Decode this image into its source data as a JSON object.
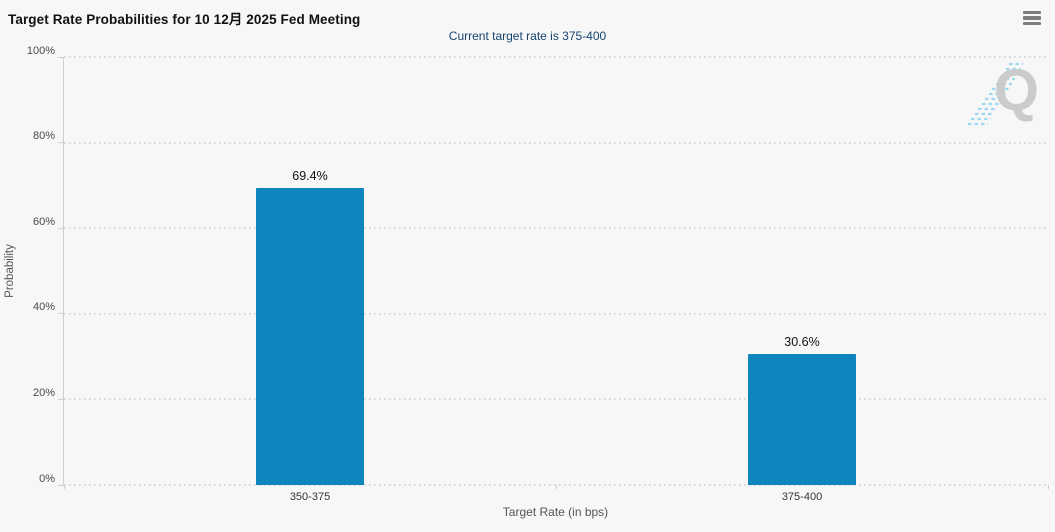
{
  "header": {
    "title": "Target Rate Probabilities for 10 12月 2025 Fed Meeting",
    "menu_icon": "hamburger-icon"
  },
  "subtitle": "Current target rate is 375-400",
  "watermark_letter": "Q",
  "chart_data": {
    "type": "bar",
    "title": "Target Rate Probabilities for 10 12月 2025 Fed Meeting",
    "subtitle": "Current target rate is 375-400",
    "categories": [
      "350-375",
      "375-400"
    ],
    "values": [
      69.4,
      30.6
    ],
    "data_labels": [
      "69.4%",
      "30.6%"
    ],
    "xlabel": "Target Rate (in bps)",
    "ylabel": "Probability",
    "ylim": [
      0,
      100
    ],
    "yticks": [
      0,
      20,
      40,
      60,
      80,
      100
    ],
    "ytick_labels": [
      "0%",
      "20%",
      "40%",
      "60%",
      "80%",
      "100%"
    ],
    "grid": "dotted horizontal",
    "legend": "none",
    "bar_color": "#0e85bd"
  },
  "colors": {
    "background": "#f7f7f7",
    "bar": "#0e85bd",
    "subtitle_text": "#17446f",
    "grid_dots": "#d6d6d6",
    "axis_line": "#cfcfcf",
    "watermark_gray": "#cbcbcb",
    "watermark_blue": "#9ed9f2"
  }
}
